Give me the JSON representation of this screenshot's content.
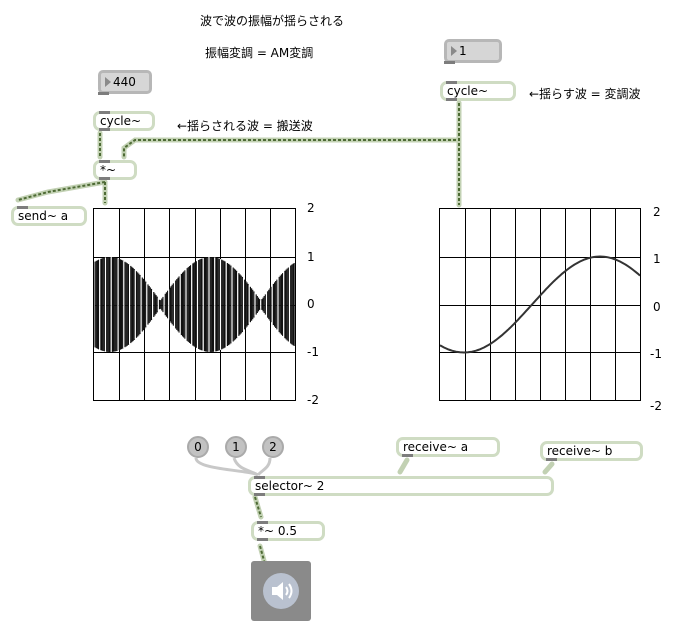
{
  "title_comment": "波で波の振幅が揺らされる",
  "subtitle_comment": "振幅変調 = AM変調",
  "comment_carrier": "←揺らされる波 = 搬送波",
  "comment_modulator": "←揺らす波 = 変調波",
  "numbox_carrier": "440",
  "numbox_modulator": "1",
  "cycle_carrier": "cycle~",
  "cycle_modulator": "cycle~",
  "multiply": "*~",
  "send": "send~ a",
  "receive_a": "receive~ a",
  "receive_b": "receive~ b",
  "selector": "selector~ 2",
  "gain": "*~ 0.5",
  "msg_0": "0",
  "msg_1": "1",
  "msg_2": "2",
  "scope_left_labels": [
    "2",
    "1",
    "0",
    "-1",
    "-2"
  ],
  "scope_right_labels": [
    "2",
    "1",
    "0",
    "-1",
    "-2"
  ],
  "colors": {
    "patchcord": "#c2d1b3",
    "signal_dash": "#4e6b35",
    "box_border": "#cfdcc3"
  },
  "icons": [
    "speaker-icon"
  ]
}
